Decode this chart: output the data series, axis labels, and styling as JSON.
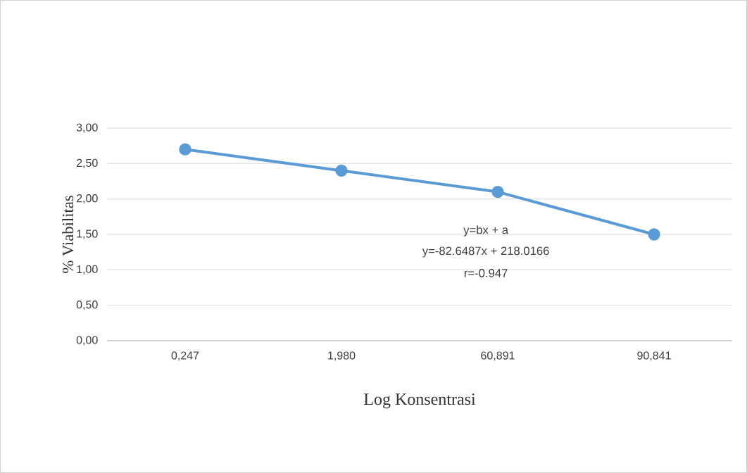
{
  "chart_data": {
    "type": "line",
    "xlabel": "Log Konsentrasi",
    "ylabel": "% Viabilitas",
    "categories": [
      "0,247",
      "1,980",
      "60,891",
      "90,841"
    ],
    "series": [
      {
        "color": "#5b9bd5",
        "values": [
          2.7,
          2.4,
          2.1,
          1.5
        ]
      }
    ],
    "ylim": [
      0,
      3
    ],
    "yticks": [
      {
        "value": 0,
        "label": "0,00"
      },
      {
        "value": 0.5,
        "label": "0,50"
      },
      {
        "value": 1,
        "label": "1,00"
      },
      {
        "value": 1.5,
        "label": "1,50"
      },
      {
        "value": 2,
        "label": "2,00"
      },
      {
        "value": 2.5,
        "label": "2,50"
      },
      {
        "value": 3,
        "label": "3,00"
      }
    ],
    "grid": "y",
    "marker": "circle",
    "line_style": "solid",
    "annotations": [
      "y=bx + a",
      "y=-82.6487x + 218.0166",
      "r=-0.947"
    ]
  }
}
